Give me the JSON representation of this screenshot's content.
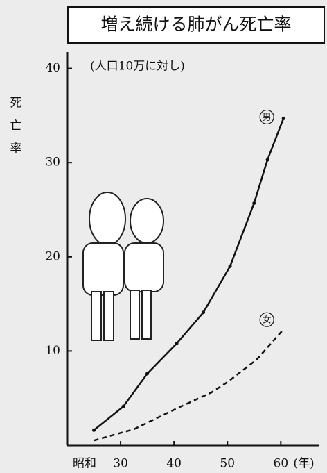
{
  "chart_data": {
    "type": "line",
    "title": "増え続ける肺がん死亡率",
    "subtitle": "(人口10万に対し)",
    "ylabel": "死亡率",
    "x_era": "昭和",
    "x_unit": "(年)",
    "xlim": [
      20,
      68
    ],
    "xticks": [
      30,
      40,
      50,
      60
    ],
    "ylim": [
      0,
      41
    ],
    "yticks": [
      10,
      20,
      30,
      40
    ],
    "series": [
      {
        "name": "男",
        "color": "#111111",
        "dashed": false,
        "markers": true,
        "x": [
          25,
          30.5,
          35,
          40.5,
          45.5,
          50.5,
          55,
          57.5,
          60.5
        ],
        "values": [
          1.6,
          4.1,
          7.6,
          10.8,
          14.1,
          19.0,
          25.7,
          30.3,
          34.7
        ]
      },
      {
        "name": "女",
        "color": "#111111",
        "dashed": true,
        "markers": false,
        "x": [
          25,
          32.5,
          40.5,
          47,
          50,
          55.5,
          60.5
        ],
        "values": [
          0.5,
          1.7,
          3.9,
          5.6,
          6.7,
          9.1,
          12.3
        ]
      }
    ]
  }
}
